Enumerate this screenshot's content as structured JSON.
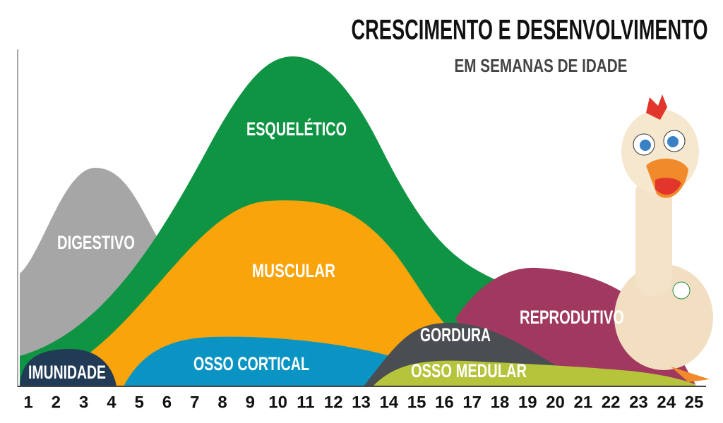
{
  "header": {
    "title": "CRESCIMENTO E DESENVOLVIMENTO",
    "subtitle": "EM SEMANAS DE IDADE"
  },
  "x_axis": {
    "labels": [
      "1",
      "2",
      "3",
      "4",
      "5",
      "6",
      "7",
      "8",
      "9",
      "10",
      "11",
      "12",
      "13",
      "14",
      "15",
      "16",
      "17",
      "18",
      "19",
      "20",
      "21",
      "22",
      "23",
      "24",
      "25"
    ]
  },
  "regions": {
    "esqueletico": "ESQUELÉTICO",
    "digestivo": "DIGESTIVO",
    "muscular": "MUSCULAR",
    "reprodutivo": "REPRODUTIVO",
    "gordura": "GORDURA",
    "imunidade": "IMUNIDADE",
    "osso_cortical": "OSSO CORTICAL",
    "osso_medular": "OSSO MEDULAR"
  }
}
